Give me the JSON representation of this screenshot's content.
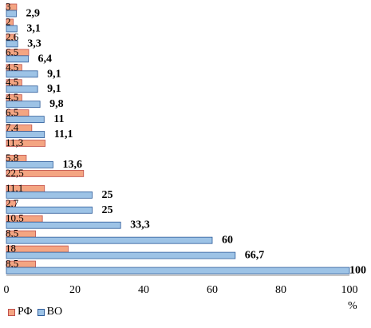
{
  "chart_data": {
    "type": "bar",
    "orientation": "horizontal",
    "unit_label": "%",
    "xlim": [
      0,
      100
    ],
    "x_ticks": [
      "0",
      "20",
      "40",
      "60",
      "80",
      "100"
    ],
    "grid": false,
    "legend_position": "bottom-left",
    "series": [
      {
        "name": "РФ",
        "color": "#F4A582",
        "stroke": "#C0504D",
        "values": [
          3,
          2,
          2.6,
          6.5,
          4.5,
          4.5,
          4.5,
          6.5,
          7.4,
          11.3,
          5.8,
          22.5,
          11.1,
          2.7,
          10.5,
          8.5,
          18,
          8.5
        ],
        "labels": [
          "3",
          "2",
          "2,6",
          "6,5",
          "4,5",
          "4,5",
          "4,5",
          "6,5",
          "7,4",
          "11,3",
          "5,8",
          "22,5",
          "11,1",
          "2,7",
          "10,5",
          "8,5",
          "18",
          "8,5"
        ]
      },
      {
        "name": "ВО",
        "color": "#9DC3E6",
        "stroke": "#2E5C9A",
        "values": [
          2.9,
          3.1,
          3.3,
          6.4,
          9.1,
          9.1,
          9.8,
          11,
          11.1,
          null,
          13.6,
          null,
          25,
          25,
          33.3,
          60,
          66.7,
          100
        ],
        "labels": [
          "2,9",
          "3,1",
          "3,3",
          "6,4",
          "9,1",
          "9,1",
          "9,8",
          "11",
          "11,1",
          "",
          "13,6",
          "",
          "25",
          "25",
          "33,3",
          "60",
          "66,7",
          "100"
        ]
      }
    ]
  }
}
